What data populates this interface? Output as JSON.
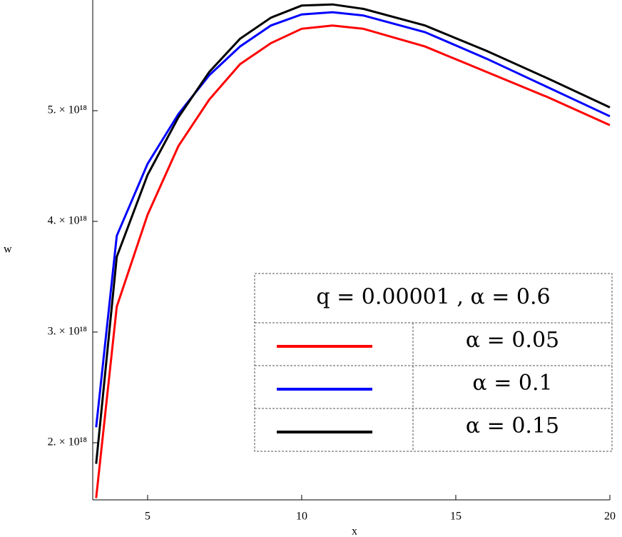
{
  "chart_data": {
    "type": "line",
    "x_label": "x",
    "y_label": "w",
    "x": [
      3.33,
      4,
      5,
      6,
      7,
      8,
      9,
      10,
      11,
      12,
      14,
      16,
      18,
      20
    ],
    "series": [
      {
        "name": "α = 0.05",
        "color": "#ff0000",
        "values": [
          1.5e+18,
          3.23e+18,
          4.06e+18,
          4.68e+18,
          5.1e+18,
          5.42e+18,
          5.61e+18,
          5.74e+18,
          5.77e+18,
          5.74e+18,
          5.58e+18,
          5.35e+18,
          5.12e+18,
          4.87e+18
        ]
      },
      {
        "name": "α = 0.1",
        "color": "#0000ff",
        "values": [
          2.14e+18,
          3.87e+18,
          4.52e+18,
          4.97e+18,
          5.32e+18,
          5.58e+18,
          5.77e+18,
          5.87e+18,
          5.89e+18,
          5.86e+18,
          5.71e+18,
          5.47e+18,
          5.21e+18,
          4.95e+18
        ]
      },
      {
        "name": "α = 0.15",
        "color": "#000000",
        "values": [
          1.81e+18,
          3.68e+18,
          4.42e+18,
          4.94e+18,
          5.35e+18,
          5.65e+18,
          5.84e+18,
          5.95e+18,
          5.96e+18,
          5.92e+18,
          5.77e+18,
          5.54e+18,
          5.29e+18,
          5.03e+18
        ]
      }
    ],
    "legend_title": "q = 0.00001  ,   α = 0.6",
    "xlim": [
      3.22,
      20
    ],
    "xticks": [
      5,
      10,
      15,
      20
    ],
    "ylim": [
      1.484e+18,
      6e+18
    ],
    "yticks": [
      {
        "value": 2e+18,
        "label": "2. × 10¹⁸"
      },
      {
        "value": 3e+18,
        "label": "3. × 10¹⁸"
      },
      {
        "value": 4e+18,
        "label": "4. × 10¹⁸"
      },
      {
        "value": 5e+18,
        "label": "5. × 10¹⁸"
      }
    ]
  }
}
